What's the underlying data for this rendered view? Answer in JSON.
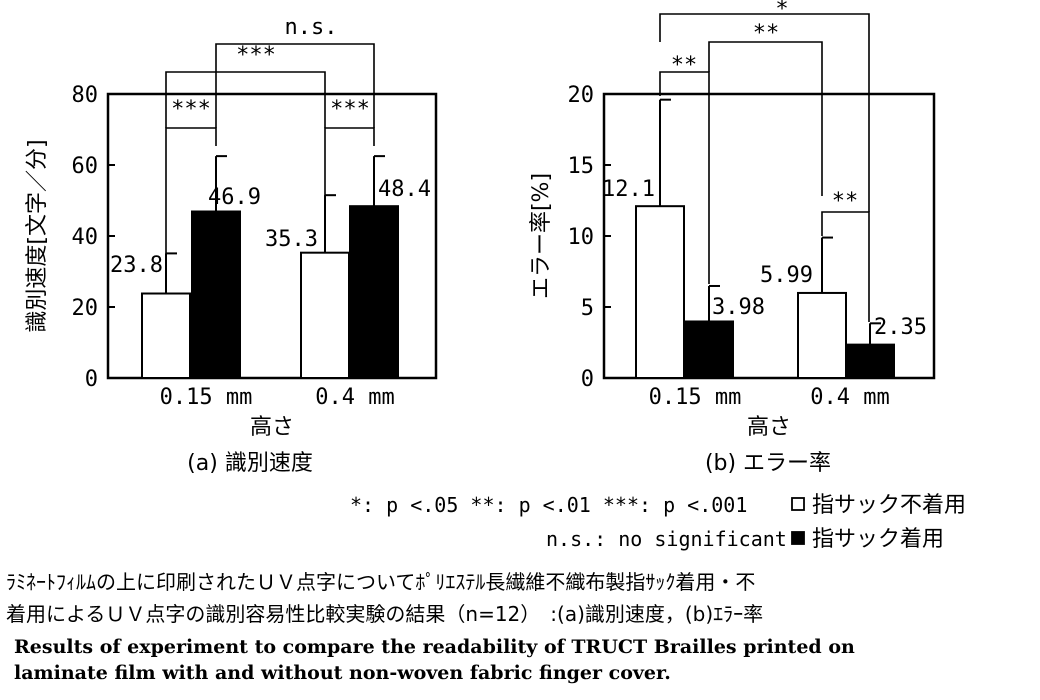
{
  "chart_data": [
    {
      "type": "bar",
      "label": "(a) 識別速度",
      "ylabel": "識別速度[文字／分]",
      "xlabel": "高さ",
      "categories": [
        "0.15 mm",
        "0.4 mm"
      ],
      "ylim": [
        0,
        80
      ],
      "yticks": [
        "0",
        "20",
        "40",
        "60",
        "80"
      ],
      "series": [
        {
          "name": "指サック不着用",
          "values": [
            23.8,
            35.3
          ],
          "errors": [
            11.3,
            16.2
          ],
          "fill": "#ffffff"
        },
        {
          "name": "指サック着用",
          "values": [
            46.9,
            48.4
          ],
          "errors": [
            15.6,
            14.1
          ],
          "fill": "#000000"
        }
      ],
      "value_labels": [
        "23.8",
        "35.3",
        "46.9",
        "48.4"
      ],
      "significance": [
        "***",
        "***",
        "***",
        "n.s."
      ]
    },
    {
      "type": "bar",
      "label": "(b) エラー率",
      "ylabel": "エラー率[%]",
      "xlabel": "高さ",
      "categories": [
        "0.15 mm",
        "0.4 mm"
      ],
      "ylim": [
        0,
        20
      ],
      "yticks": [
        "0",
        "5",
        "10",
        "15",
        "20"
      ],
      "series": [
        {
          "name": "指サック不着用",
          "values": [
            12.1,
            5.99
          ],
          "errors": [
            7.5,
            3.9
          ],
          "fill": "#ffffff"
        },
        {
          "name": "指サック着用",
          "values": [
            3.98,
            2.35
          ],
          "errors": [
            2.5,
            1.5
          ],
          "fill": "#000000"
        }
      ],
      "value_labels": [
        "12.1",
        "5.99",
        "3.98",
        "2.35"
      ],
      "significance": [
        "**",
        "**",
        "**",
        "*"
      ]
    }
  ],
  "legend": {
    "p_levels": "*: p <.05  **: p <.01 ***: p <.001",
    "ns": "n.s.: no significant",
    "open_label": "指サック不着用",
    "filled_label": "指サック着用"
  },
  "caption": {
    "jp_line1": "ﾗﾐﾈｰﾄﾌｨﾙﾑの上に印刷されたＵＶ点字についてﾎﾟﾘｴｽﾃﾙ長繊維不織布製指ｻｯｸ着用・不",
    "jp_line2": "着用によるＵＶ点字の識別容易性比較実験の結果（n=12）　:(a)識別速度，(b)ｴﾗｰ率",
    "en_line1": "Results of experiment to compare the readability of TRUCT Brailles printed on",
    "en_line2": "laminate film with and without non-woven fabric finger cover."
  }
}
